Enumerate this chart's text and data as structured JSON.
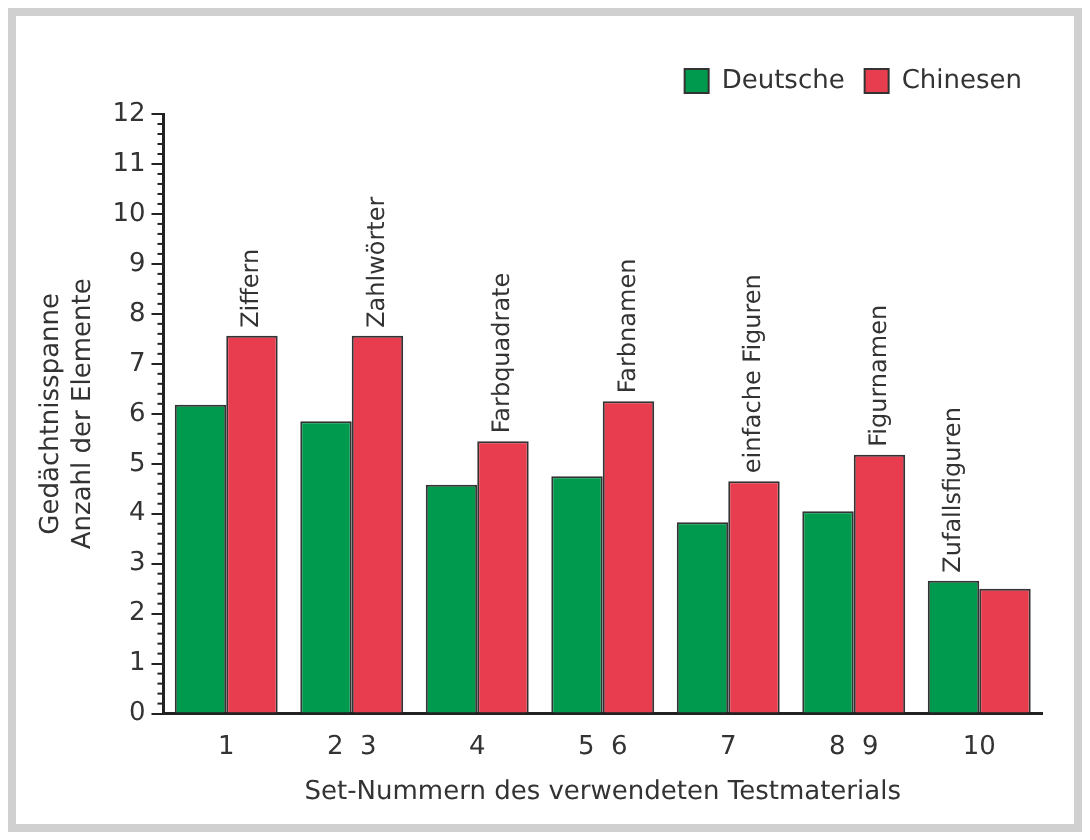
{
  "chart_data": {
    "type": "bar",
    "xlabel": "Set-Nummern des verwendeten Testmaterials",
    "ylabel": "Gedächtnisspanne\nAnzahl der Elemente",
    "categories": [
      "1",
      "2  3",
      "4",
      "5  6",
      "7",
      "8  9",
      "10"
    ],
    "series": [
      {
        "name": "Deutsche",
        "color": "#009a4e",
        "values": [
          6.18,
          5.85,
          4.58,
          4.75,
          3.83,
          4.05,
          2.66
        ]
      },
      {
        "name": "Chinesen",
        "color": "#e83d4f",
        "values": [
          7.56,
          7.56,
          5.45,
          6.25,
          4.65,
          5.18,
          2.5
        ]
      }
    ],
    "ylim": [
      0,
      12
    ],
    "yticks": [
      0,
      1,
      2,
      3,
      4,
      5,
      6,
      7,
      8,
      9,
      10,
      11,
      12
    ],
    "grid": false,
    "legend": "top right",
    "annotations": [
      {
        "text": "Ziffern",
        "x": "1",
        "y": 7.56
      },
      {
        "text": "Zahlwörter",
        "x": "2  3",
        "y": 7.56
      },
      {
        "text": "Farbquadrate",
        "x": "4",
        "y": 5.45
      },
      {
        "text": "Farbnamen",
        "x": "5  6",
        "y": 6.25
      },
      {
        "text": "einfache Figuren",
        "x": "7",
        "y": 4.65
      },
      {
        "text": "Figurnamen",
        "x": "8  9",
        "y": 5.18
      },
      {
        "text": "Zufallsfiguren",
        "x": "10",
        "y": 2.66
      }
    ]
  }
}
